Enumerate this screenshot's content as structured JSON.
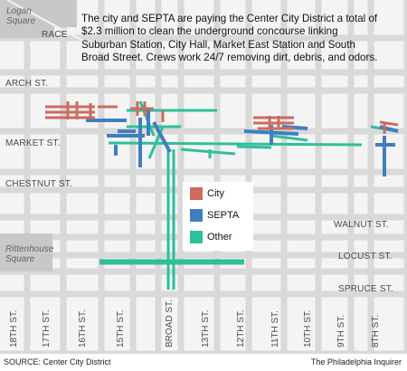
{
  "headline": "The city and SEPTA are paying the Center City District a total of $2.3 million to clean the underground concourse linking Suburban Station, City Hall, Market East Station and South Broad Street. Crews work 24/7 removing dirt, debris, and odors.",
  "streets_horizontal": {
    "race": "RACE",
    "arch": "ARCH ST.",
    "market": "MARKET ST.",
    "chestnut": "CHESTNUT ST.",
    "walnut": "WALNUT ST.",
    "locust": "LOCUST ST.",
    "spruce": "SPRUCE ST."
  },
  "streets_vertical": [
    "18TH ST.",
    "17TH ST.",
    "16TH ST.",
    "15TH ST.",
    "BROAD ST.",
    "13TH ST.",
    "12TH ST.",
    "11TH ST.",
    "10TH ST.",
    "9TH ST.",
    "8TH ST."
  ],
  "parks": {
    "logan": "Logan Square",
    "rittenhouse": "Rittenhouse Square"
  },
  "legend": [
    {
      "label": "City",
      "color": "#cc6b5e"
    },
    {
      "label": "SEPTA",
      "color": "#3f7fbf"
    },
    {
      "label": "Other",
      "color": "#2ebf9b"
    }
  ],
  "colors": {
    "city": "#cc6b5e",
    "septa": "#3f7fbf",
    "other": "#2ebf9b",
    "block": "#f4f4f4",
    "street": "#d9d9d9"
  },
  "source": "SOURCE: Center City District",
  "credit": "The Philadelphia Inquirer"
}
